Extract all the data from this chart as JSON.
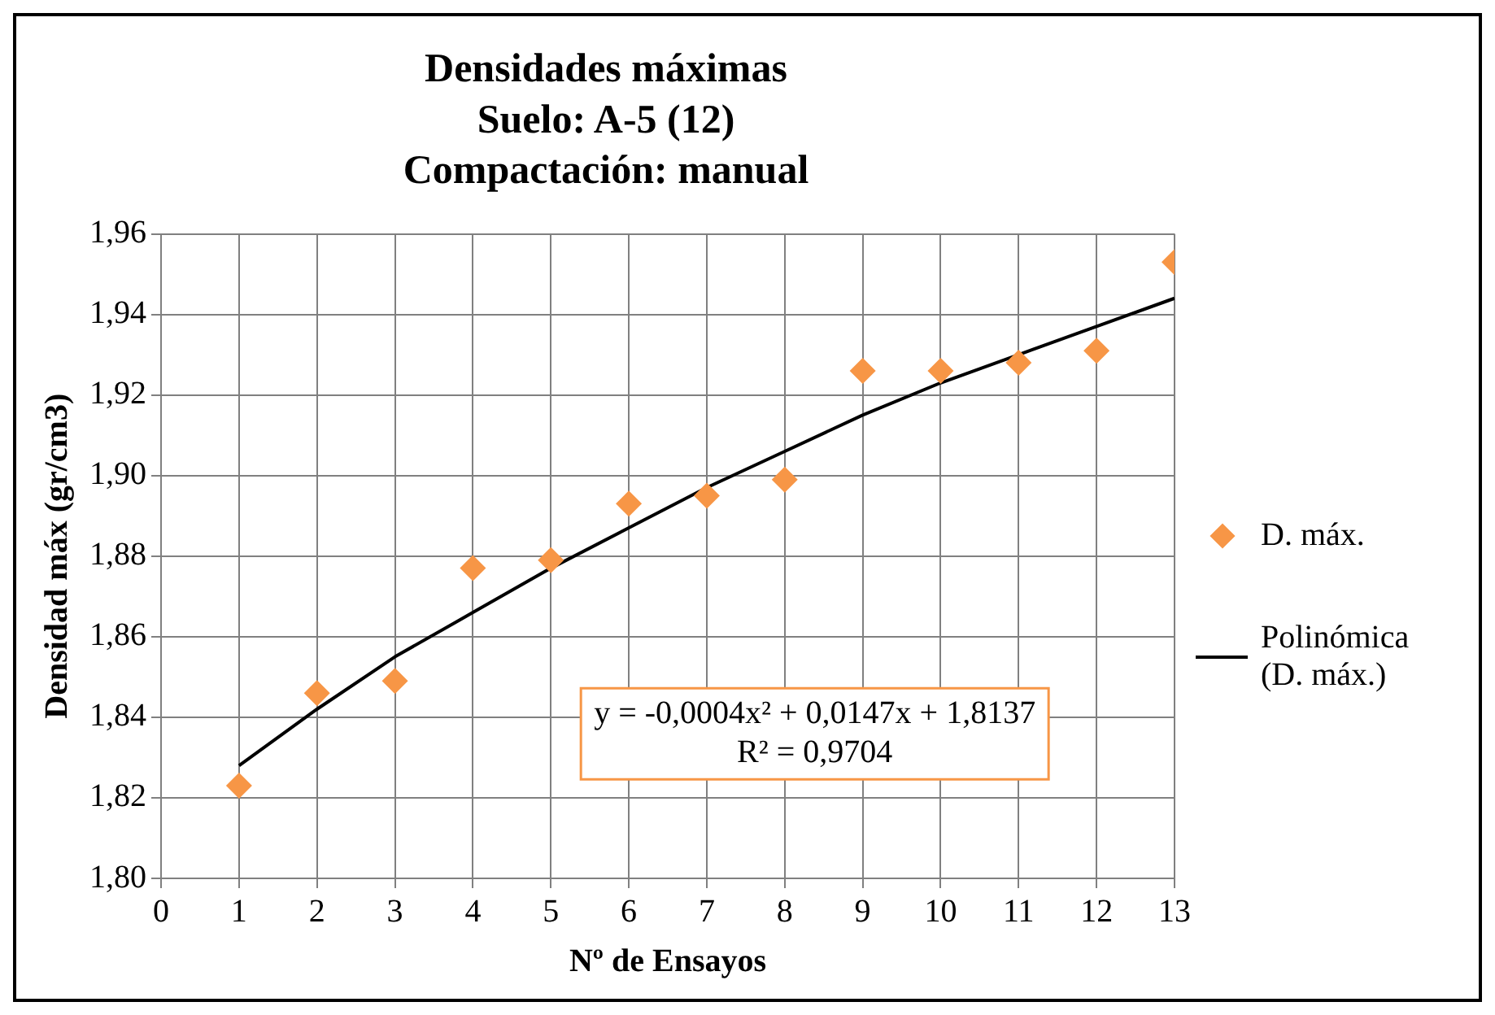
{
  "chart_data": {
    "type": "scatter",
    "title": "Densidades máximas\nSuelo: A-5 (12)\nCompactación: manual",
    "xlabel": "Nº de Ensayos",
    "ylabel": "Densidad máx (gr/cm3)",
    "x": [
      1,
      2,
      3,
      4,
      5,
      6,
      7,
      8,
      9,
      10,
      11,
      12,
      13
    ],
    "series": [
      {
        "name": "D. máx.",
        "type": "scatter",
        "color": "#f79646",
        "marker": "diamond",
        "values": [
          1.823,
          1.846,
          1.849,
          1.877,
          1.879,
          1.893,
          1.895,
          1.899,
          1.926,
          1.926,
          1.928,
          1.931,
          1.953
        ]
      },
      {
        "name": "Polinómica (D. máx.)",
        "type": "line",
        "color": "#000000",
        "marker": "none",
        "line_style": "solid",
        "values": [
          1.828,
          1.842,
          1.855,
          1.866,
          1.877,
          1.887,
          1.897,
          1.906,
          1.915,
          1.923,
          1.93,
          1.937,
          1.944
        ]
      }
    ],
    "annotations": [
      "y = -0,0004x² + 0,0147x + 1,8137",
      "R² = 0,9704"
    ],
    "xlim": [
      0,
      13
    ],
    "xticks": [
      0,
      1,
      2,
      3,
      4,
      5,
      6,
      7,
      8,
      9,
      10,
      11,
      12,
      13
    ],
    "ylim": [
      1.8,
      1.96
    ],
    "yticks": [
      {
        "value": 1.8,
        "label": "1,80"
      },
      {
        "value": 1.82,
        "label": "1,82"
      },
      {
        "value": 1.84,
        "label": "1,84"
      },
      {
        "value": 1.86,
        "label": "1,86"
      },
      {
        "value": 1.88,
        "label": "1,88"
      },
      {
        "value": 1.9,
        "label": "1,90"
      },
      {
        "value": 1.92,
        "label": "1,92"
      },
      {
        "value": 1.94,
        "label": "1,94"
      },
      {
        "value": 1.96,
        "label": "1,96"
      }
    ],
    "grid": true,
    "legend": "right"
  }
}
